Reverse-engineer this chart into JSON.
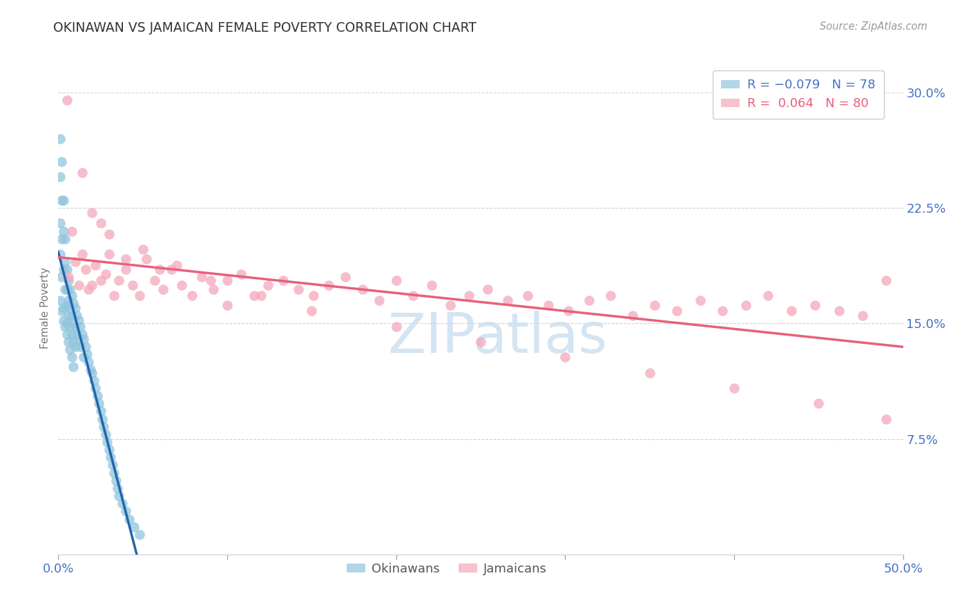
{
  "title": "OKINAWAN VS JAMAICAN FEMALE POVERTY CORRELATION CHART",
  "source": "Source: ZipAtlas.com",
  "ylabel": "Female Poverty",
  "xlim": [
    0.0,
    0.5
  ],
  "ylim": [
    0.0,
    0.32
  ],
  "xtick_positions": [
    0.0,
    0.1,
    0.2,
    0.3,
    0.4,
    0.5
  ],
  "xtick_labels": [
    "0.0%",
    "",
    "",
    "",
    "",
    "50.0%"
  ],
  "ytick_positions": [
    0.075,
    0.15,
    0.225,
    0.3
  ],
  "ytick_labels": [
    "7.5%",
    "15.0%",
    "22.5%",
    "30.0%"
  ],
  "okinawan_color": "#92c5de",
  "jamaican_color": "#f4a7b9",
  "okinawan_line_color": "#2166ac",
  "jamaican_line_color": "#e8607a",
  "okinawan_dash_color": "#b8d4e8",
  "grid_color": "#d0d0d0",
  "watermark_color": "#cde0f0",
  "background_color": "#ffffff",
  "legend_r_n": [
    {
      "r": "-0.079",
      "n": "78"
    },
    {
      "r": " 0.064",
      "n": "80"
    }
  ],
  "bottom_legend": [
    "Okinawans",
    "Jamaicans"
  ],
  "ok_x": [
    0.001,
    0.001,
    0.001,
    0.001,
    0.001,
    0.002,
    0.002,
    0.002,
    0.002,
    0.003,
    0.003,
    0.003,
    0.003,
    0.004,
    0.004,
    0.004,
    0.005,
    0.005,
    0.005,
    0.005,
    0.006,
    0.006,
    0.006,
    0.007,
    0.007,
    0.007,
    0.008,
    0.008,
    0.008,
    0.009,
    0.009,
    0.009,
    0.01,
    0.01,
    0.01,
    0.011,
    0.011,
    0.012,
    0.012,
    0.013,
    0.013,
    0.014,
    0.015,
    0.015,
    0.016,
    0.017,
    0.018,
    0.019,
    0.02,
    0.021,
    0.022,
    0.023,
    0.024,
    0.025,
    0.026,
    0.027,
    0.028,
    0.029,
    0.03,
    0.031,
    0.032,
    0.033,
    0.034,
    0.035,
    0.036,
    0.038,
    0.04,
    0.042,
    0.045,
    0.048,
    0.002,
    0.003,
    0.004,
    0.005,
    0.006,
    0.007,
    0.008,
    0.009
  ],
  "ok_y": [
    0.27,
    0.245,
    0.215,
    0.195,
    0.165,
    0.255,
    0.23,
    0.205,
    0.18,
    0.23,
    0.21,
    0.185,
    0.16,
    0.205,
    0.19,
    0.172,
    0.185,
    0.172,
    0.162,
    0.15,
    0.178,
    0.165,
    0.155,
    0.172,
    0.16,
    0.148,
    0.168,
    0.155,
    0.143,
    0.163,
    0.15,
    0.138,
    0.16,
    0.148,
    0.135,
    0.155,
    0.143,
    0.152,
    0.14,
    0.148,
    0.135,
    0.143,
    0.14,
    0.128,
    0.135,
    0.13,
    0.125,
    0.12,
    0.118,
    0.113,
    0.108,
    0.103,
    0.098,
    0.093,
    0.088,
    0.083,
    0.078,
    0.073,
    0.068,
    0.063,
    0.058,
    0.053,
    0.048,
    0.043,
    0.038,
    0.033,
    0.028,
    0.023,
    0.018,
    0.013,
    0.158,
    0.152,
    0.148,
    0.143,
    0.138,
    0.133,
    0.128,
    0.122
  ],
  "ja_x": [
    0.005,
    0.006,
    0.008,
    0.01,
    0.012,
    0.014,
    0.016,
    0.018,
    0.02,
    0.022,
    0.025,
    0.028,
    0.03,
    0.033,
    0.036,
    0.04,
    0.044,
    0.048,
    0.052,
    0.057,
    0.062,
    0.067,
    0.073,
    0.079,
    0.085,
    0.092,
    0.1,
    0.108,
    0.116,
    0.124,
    0.133,
    0.142,
    0.151,
    0.16,
    0.17,
    0.18,
    0.19,
    0.2,
    0.21,
    0.221,
    0.232,
    0.243,
    0.254,
    0.266,
    0.278,
    0.29,
    0.302,
    0.314,
    0.327,
    0.34,
    0.353,
    0.366,
    0.38,
    0.393,
    0.407,
    0.42,
    0.434,
    0.448,
    0.462,
    0.476,
    0.49,
    0.014,
    0.02,
    0.03,
    0.05,
    0.07,
    0.09,
    0.12,
    0.15,
    0.2,
    0.25,
    0.3,
    0.35,
    0.4,
    0.45,
    0.49,
    0.025,
    0.04,
    0.06,
    0.1
  ],
  "ja_y": [
    0.295,
    0.18,
    0.21,
    0.19,
    0.175,
    0.195,
    0.185,
    0.172,
    0.175,
    0.188,
    0.178,
    0.182,
    0.195,
    0.168,
    0.178,
    0.185,
    0.175,
    0.168,
    0.192,
    0.178,
    0.172,
    0.185,
    0.175,
    0.168,
    0.18,
    0.172,
    0.178,
    0.182,
    0.168,
    0.175,
    0.178,
    0.172,
    0.168,
    0.175,
    0.18,
    0.172,
    0.165,
    0.178,
    0.168,
    0.175,
    0.162,
    0.168,
    0.172,
    0.165,
    0.168,
    0.162,
    0.158,
    0.165,
    0.168,
    0.155,
    0.162,
    0.158,
    0.165,
    0.158,
    0.162,
    0.168,
    0.158,
    0.162,
    0.158,
    0.155,
    0.178,
    0.248,
    0.222,
    0.208,
    0.198,
    0.188,
    0.178,
    0.168,
    0.158,
    0.148,
    0.138,
    0.128,
    0.118,
    0.108,
    0.098,
    0.088,
    0.215,
    0.192,
    0.185,
    0.162
  ]
}
